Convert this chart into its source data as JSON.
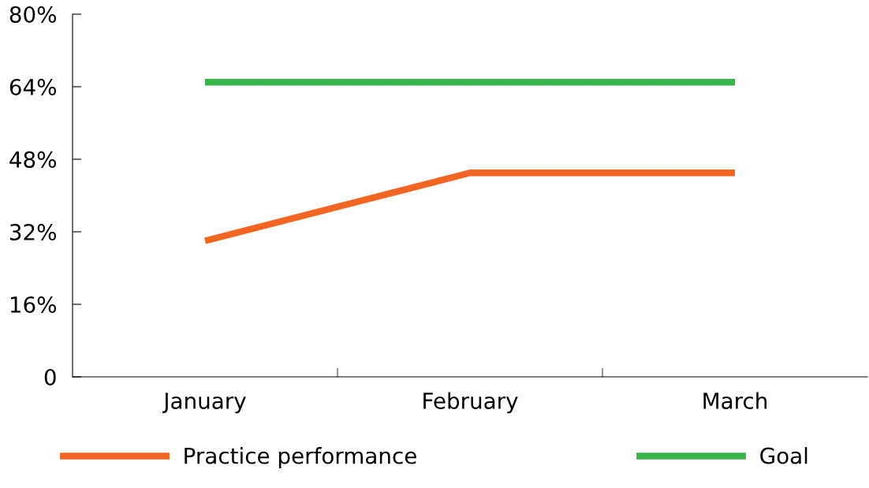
{
  "chart_data": {
    "type": "line",
    "categories": [
      "January",
      "February",
      "March"
    ],
    "series": [
      {
        "name": "Practice performance",
        "color": "#f26522",
        "values": [
          30,
          45,
          45
        ]
      },
      {
        "name": "Goal",
        "color": "#3ab54a",
        "values": [
          65,
          65,
          65
        ]
      }
    ],
    "ylim": [
      0,
      80
    ],
    "yticks": [
      0,
      {
        "value": 16,
        "label": "16%"
      },
      {
        "value": 32,
        "label": "32%"
      },
      {
        "value": 48,
        "label": "48%"
      },
      {
        "value": 64,
        "label": "64%"
      },
      {
        "value": 80,
        "label": "80%"
      }
    ],
    "grid": false,
    "legend": "bottom",
    "marker": "none",
    "line_style": "solid"
  }
}
